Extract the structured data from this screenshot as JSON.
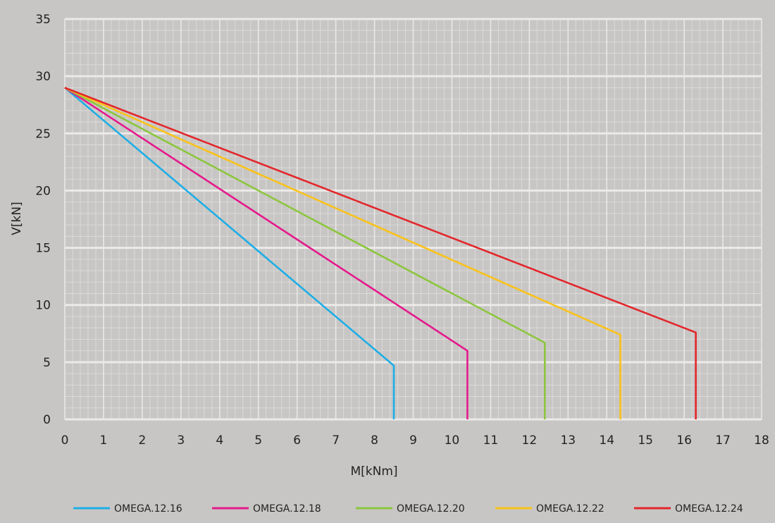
{
  "chart_data": {
    "type": "line",
    "xlabel": "M[kNm]",
    "ylabel": "V[kN]",
    "xlim": [
      0,
      18
    ],
    "ylim": [
      0,
      35
    ],
    "x_ticks": [
      0,
      1,
      2,
      3,
      4,
      5,
      6,
      7,
      8,
      9,
      10,
      11,
      12,
      13,
      14,
      15,
      16,
      17,
      18
    ],
    "y_ticks": [
      0,
      5,
      10,
      15,
      20,
      25,
      30,
      35
    ],
    "grid": true,
    "minor_grid": true,
    "legend_position": "bottom",
    "series": [
      {
        "name": "OMEGA.12.16",
        "color": "#1eaee6",
        "points": [
          [
            0,
            29
          ],
          [
            8.5,
            4.7
          ],
          [
            8.5,
            0
          ]
        ]
      },
      {
        "name": "OMEGA.12.18",
        "color": "#e5198c",
        "points": [
          [
            0,
            29
          ],
          [
            10.4,
            6.0
          ],
          [
            10.4,
            0
          ]
        ]
      },
      {
        "name": "OMEGA.12.20",
        "color": "#8cc63e",
        "points": [
          [
            0,
            29
          ],
          [
            12.4,
            6.7
          ],
          [
            12.4,
            0
          ]
        ]
      },
      {
        "name": "OMEGA.12.22",
        "color": "#f9c21a",
        "points": [
          [
            0,
            29
          ],
          [
            14.35,
            7.4
          ],
          [
            14.35,
            0
          ]
        ]
      },
      {
        "name": "OMEGA.12.24",
        "color": "#e3262b",
        "points": [
          [
            0,
            29
          ],
          [
            16.3,
            7.6
          ],
          [
            16.3,
            0
          ]
        ]
      }
    ]
  }
}
